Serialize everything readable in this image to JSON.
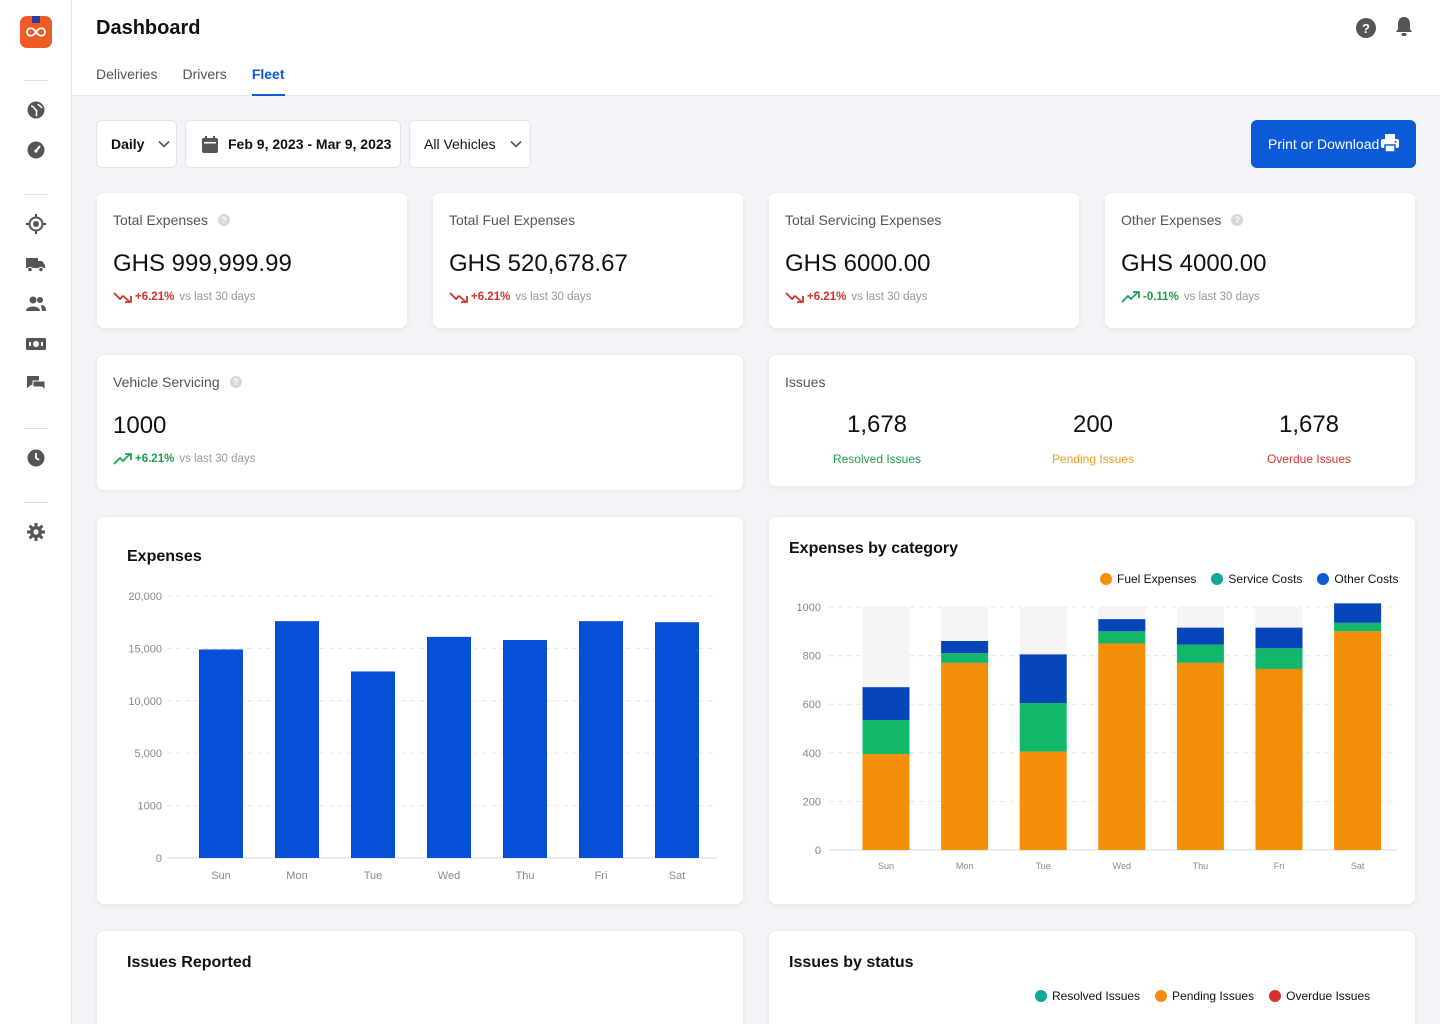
{
  "header": {
    "title": "Dashboard",
    "tabs": [
      {
        "label": "Deliveries",
        "active": false
      },
      {
        "label": "Drivers",
        "active": false
      },
      {
        "label": "Fleet",
        "active": true
      }
    ],
    "help_glyph": "?"
  },
  "filters": {
    "period": "Daily",
    "date_range": "Feb 9, 2023 - Mar 9, 2023",
    "vehicles": "All Vehicles"
  },
  "actions": {
    "print_label": "Print or Download"
  },
  "stats": [
    {
      "label": "Total Expenses",
      "value": "GHS 999,999.99",
      "change": "+6.21%",
      "compare": "vs last 30 days",
      "trend": "down",
      "has_info": true
    },
    {
      "label": "Total Fuel Expenses",
      "value": "GHS 520,678.67",
      "change": "+6.21%",
      "compare": "vs last 30 days",
      "trend": "down",
      "has_info": false
    },
    {
      "label": "Total Servicing Expenses",
      "value": "GHS 6000.00",
      "change": "+6.21%",
      "compare": "vs last 30 days",
      "trend": "down",
      "has_info": false
    },
    {
      "label": "Other Expenses",
      "value": "GHS 4000.00",
      "change": "-0.11%",
      "compare": "vs last 30 days",
      "trend": "up",
      "has_info": true
    }
  ],
  "vehicle_servicing": {
    "label": "Vehicle Servicing",
    "value": "1000",
    "change": "+6.21%",
    "compare": "vs last 30 days",
    "trend": "up"
  },
  "issues": {
    "label": "Issues",
    "items": [
      {
        "value": "1,678",
        "label": "Resolved Issues",
        "color": "#1f9d55"
      },
      {
        "value": "200",
        "label": "Pending Issues",
        "color": "#f39c12"
      },
      {
        "value": "1,678",
        "label": "Overdue Issues",
        "color": "#d6322b"
      }
    ]
  },
  "expenses_chart": {
    "title": "Expenses"
  },
  "category_chart": {
    "title": "Expenses by category",
    "legend": [
      {
        "name": "Fuel Expenses",
        "color": "#f58f0a"
      },
      {
        "name": "Service Costs",
        "color": "#12a89b"
      },
      {
        "name": "Other Costs",
        "color": "#0b5bd8"
      }
    ]
  },
  "issues_reported": {
    "title": "Issues Reported"
  },
  "issues_status": {
    "title": "Issues by status",
    "legend": [
      {
        "name": "Resolved Issues",
        "color": "#12a89b"
      },
      {
        "name": "Pending Issues",
        "color": "#f58f0a"
      },
      {
        "name": "Overdue Issues",
        "color": "#d6322b"
      }
    ]
  },
  "chart_data": [
    {
      "type": "bar",
      "title": "Expenses",
      "categories": [
        "Sun",
        "Mon",
        "Tue",
        "Wed",
        "Thu",
        "Fri",
        "Sat"
      ],
      "values": [
        14900,
        17600,
        12800,
        16100,
        15800,
        17600,
        17500
      ],
      "yticks": [
        0,
        1000,
        5000,
        10000,
        15000,
        20000
      ],
      "ytick_labels": [
        "0",
        "1000",
        "5,000",
        "10,000",
        "15,000",
        "20,000"
      ],
      "ylim": [
        0,
        20000
      ],
      "grid": true,
      "color": "#0650d8"
    },
    {
      "type": "bar",
      "stacked": true,
      "title": "Expenses by category",
      "categories": [
        "Sun",
        "Mon",
        "Tue",
        "Wed",
        "Thu",
        "Fri",
        "Sat"
      ],
      "series": [
        {
          "name": "Fuel Expenses",
          "values": [
            395,
            770,
            405,
            850,
            770,
            745,
            900
          ],
          "color": "#f58f0a"
        },
        {
          "name": "Service Costs",
          "values": [
            140,
            40,
            200,
            50,
            75,
            85,
            35
          ],
          "color": "#12b76a"
        },
        {
          "name": "Other Costs",
          "values": [
            135,
            50,
            200,
            50,
            70,
            85,
            80
          ],
          "color": "#0545b8"
        }
      ],
      "background_max": 1000,
      "yticks": [
        0,
        200,
        400,
        600,
        800,
        1000
      ],
      "ylim": [
        0,
        1000
      ],
      "legend": "top-right",
      "grid": true
    }
  ]
}
